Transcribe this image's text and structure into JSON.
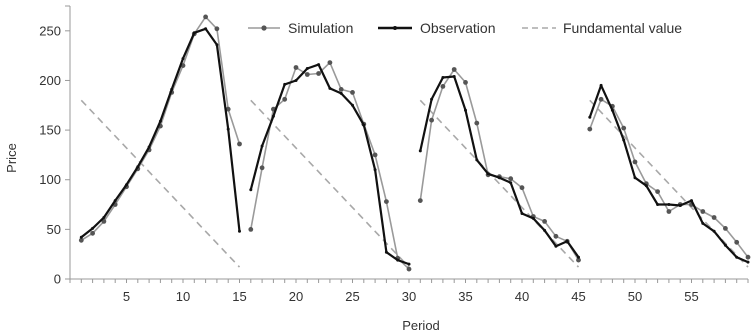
{
  "chart_data": {
    "type": "line",
    "title": "",
    "xlabel": "Period",
    "ylabel": "Price",
    "xlim": [
      0,
      60
    ],
    "ylim": [
      0,
      275
    ],
    "x_ticks": [
      5,
      10,
      15,
      20,
      25,
      30,
      35,
      40,
      45,
      50,
      55
    ],
    "y_ticks": [
      0,
      50,
      100,
      150,
      200,
      250
    ],
    "grid": false,
    "legend_position": "top",
    "series": [
      {
        "name": "Simulation",
        "color": "#9a9a9a",
        "style": "solid-marker",
        "segments": [
          {
            "x": [
              1,
              2,
              3,
              4,
              5,
              6,
              7,
              8,
              9,
              10,
              11,
              12,
              13,
              14,
              15
            ],
            "y": [
              39,
              46,
              58,
              75,
              93,
              111,
              130,
              154,
              188,
              215,
              247,
              264,
              252,
              171,
              136
            ]
          },
          {
            "x": [
              16,
              17,
              18,
              19,
              20,
              21,
              22,
              23,
              24,
              25,
              26,
              27,
              28,
              29,
              30
            ],
            "y": [
              50,
              112,
              171,
              181,
              213,
              206,
              207,
              218,
              191,
              188,
              156,
              125,
              78,
              21,
              10
            ]
          },
          {
            "x": [
              31,
              32,
              33,
              34,
              35,
              36,
              37,
              38,
              39,
              40,
              41,
              42,
              43,
              44,
              45
            ],
            "y": [
              79,
              160,
              194,
              211,
              198,
              157,
              105,
              103,
              101,
              92,
              63,
              58,
              43,
              38,
              19
            ]
          },
          {
            "x": [
              46,
              47,
              48,
              49,
              50,
              51,
              52,
              53,
              54,
              55,
              56,
              57,
              58,
              59,
              60
            ],
            "y": [
              151,
              181,
              174,
              152,
              118,
              96,
              88,
              68,
              75,
              75,
              68,
              62,
              51,
              37,
              22
            ]
          }
        ]
      },
      {
        "name": "Observation",
        "color": "#111111",
        "style": "solid-bold",
        "segments": [
          {
            "x": [
              1,
              2,
              3,
              4,
              5,
              6,
              7,
              8,
              9,
              10,
              11,
              12,
              13,
              14,
              15
            ],
            "y": [
              42,
              51,
              62,
              79,
              95,
              113,
              133,
              159,
              191,
              222,
              248,
              252,
              236,
              151,
              48
            ]
          },
          {
            "x": [
              16,
              17,
              18,
              19,
              20,
              21,
              22,
              23,
              24,
              25,
              26,
              27,
              28,
              29,
              30
            ],
            "y": [
              90,
              134,
              164,
              196,
              200,
              212,
              216,
              192,
              187,
              175,
              155,
              110,
              27,
              19,
              15
            ]
          },
          {
            "x": [
              31,
              32,
              33,
              34,
              35,
              36,
              37,
              38,
              39,
              40,
              41,
              42,
              43,
              44,
              45
            ],
            "y": [
              129,
              181,
              203,
              204,
              170,
              120,
              106,
              102,
              97,
              66,
              61,
              49,
              33,
              38,
              22
            ]
          },
          {
            "x": [
              46,
              47,
              48,
              49,
              50,
              51,
              52,
              53,
              54,
              55,
              56,
              57,
              58,
              59,
              60
            ],
            "y": [
              163,
              195,
              170,
              140,
              102,
              94,
              75,
              75,
              74,
              79,
              56,
              48,
              34,
              22,
              17
            ]
          }
        ]
      },
      {
        "name": "Fundamental value",
        "color": "#a8a8a8",
        "style": "dashed",
        "segments": [
          {
            "x": [
              1,
              15
            ],
            "y": [
              180,
              12
            ]
          },
          {
            "x": [
              16,
              30
            ],
            "y": [
              180,
              12
            ]
          },
          {
            "x": [
              31,
              45
            ],
            "y": [
              180,
              12
            ]
          },
          {
            "x": [
              46,
              60
            ],
            "y": [
              180,
              12
            ]
          }
        ]
      }
    ]
  }
}
